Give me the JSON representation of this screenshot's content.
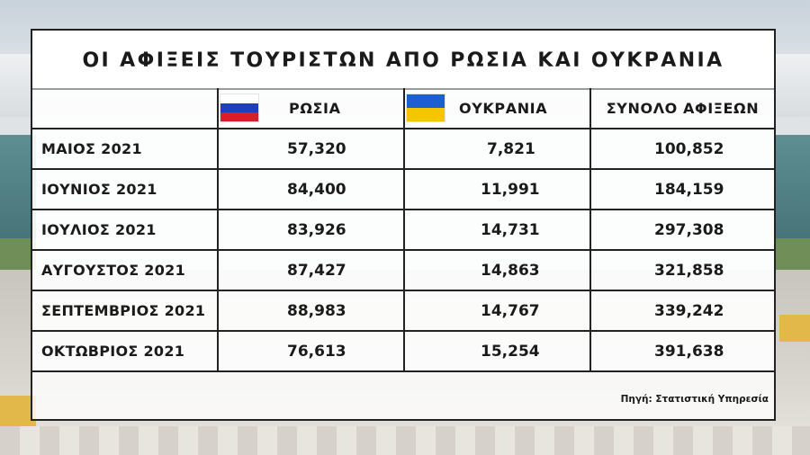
{
  "title": "ΟΙ ΑΦΙΞΕΙΣ ΤΟΥΡΙΣΤΩΝ ΑΠΟ ΡΩΣΙΑ ΚΑΙ ΟΥΚΡΑΝΙΑ",
  "headers": {
    "russia": "ΡΩΣΙΑ",
    "ukraine": "ΟΥΚΡΑΝΙΑ",
    "total": "ΣΥΝΟΛΟ ΑΦΙΞΕΩΝ"
  },
  "colors": {
    "flag_russia": [
      "#ffffff",
      "#1d3fbf",
      "#d5202a"
    ],
    "flag_ukraine": [
      "#1d5fd1",
      "#f4c600"
    ]
  },
  "rows": [
    {
      "month": "ΜΑΙΟΣ 2021",
      "russia": "57,320",
      "ukraine": "7,821",
      "total": "100,852"
    },
    {
      "month": "ΙΟΥΝΙΟΣ 2021",
      "russia": "84,400",
      "ukraine": "11,991",
      "total": "184,159"
    },
    {
      "month": "ΙΟΥΛΙΟΣ 2021",
      "russia": "83,926",
      "ukraine": "14,731",
      "total": "297,308"
    },
    {
      "month": "ΑΥΓΟΥΣΤΟΣ 2021",
      "russia": "87,427",
      "ukraine": "14,863",
      "total": "321,858"
    },
    {
      "month": "ΣΕΠΤΕΜΒΡΙΟΣ 2021",
      "russia": "88,983",
      "ukraine": "14,767",
      "total": "339,242"
    },
    {
      "month": "ΟΚΤΩΒΡΙΟΣ 2021",
      "russia": "76,613",
      "ukraine": "15,254",
      "total": "391,638"
    }
  ],
  "source": "Πηγή: Στατιστική Υπηρεσία"
}
